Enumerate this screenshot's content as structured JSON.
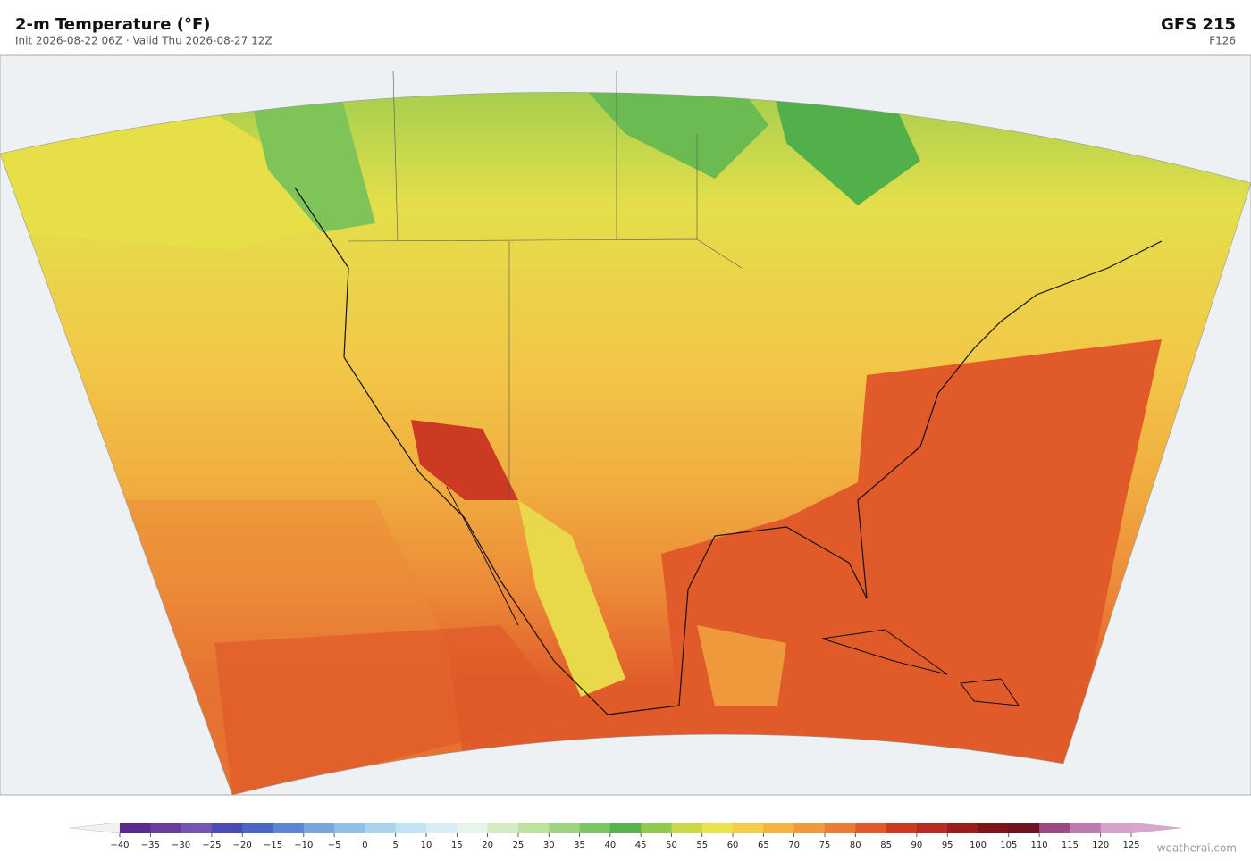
{
  "header": {
    "title": "2-m Temperature  (°F)",
    "subtitle": "Init 2026-08-22 06Z  ·  Valid Thu 2026-08-27 12Z",
    "model": "GFS  215",
    "forecast_hour": "F126"
  },
  "colorbar": {
    "ticks": [
      {
        "value": -40,
        "label": "−40"
      },
      {
        "value": -35,
        "label": "−35"
      },
      {
        "value": -30,
        "label": "−30"
      },
      {
        "value": -25,
        "label": "−25"
      },
      {
        "value": -20,
        "label": "−20"
      },
      {
        "value": -15,
        "label": "−15"
      },
      {
        "value": -10,
        "label": "−10"
      },
      {
        "value": -5,
        "label": "−5"
      },
      0,
      5,
      10,
      15,
      20,
      25,
      30,
      35,
      40,
      45,
      50,
      55,
      60,
      65,
      70,
      75,
      80,
      85,
      90,
      95,
      100,
      105,
      110,
      115,
      120,
      125
    ],
    "colors": [
      "#5a2a8c",
      "#6a3d9a",
      "#7456b0",
      "#4a4ab8",
      "#4c64c8",
      "#5f84d4",
      "#7aa6dc",
      "#94bfe4",
      "#acd3ec",
      "#c4e3f2",
      "#d8eef4",
      "#e6f4ec",
      "#d4ecc4",
      "#bce29e",
      "#9ed27e",
      "#7cc464",
      "#56b24c",
      "#90c850",
      "#c8d848",
      "#eae24a",
      "#f4cc48",
      "#f4b442",
      "#ef9a3c",
      "#e87e34",
      "#e05a2a",
      "#cc3a24",
      "#b82a22",
      "#9a1c1e",
      "#7e1418",
      "#6e1420",
      "#9a4a7e",
      "#bc7ab0",
      "#d6a2cc"
    ]
  },
  "footer": {
    "credit": "weatherai.com"
  }
}
